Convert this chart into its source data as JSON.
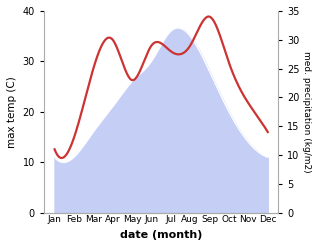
{
  "months": [
    "Jan",
    "Feb",
    "Mar",
    "Apr",
    "May",
    "Jun",
    "Jul",
    "Aug",
    "Sep",
    "Oct",
    "Nov",
    "Dec"
  ],
  "max_temp": [
    11,
    11,
    16,
    21,
    26,
    30,
    36,
    35,
    28,
    20,
    14,
    11
  ],
  "precipitation": [
    11,
    13,
    25,
    30,
    23,
    29,
    28,
    29,
    34,
    26,
    19,
    14
  ],
  "temp_ylim": [
    0,
    40
  ],
  "precip_ylim": [
    0,
    35
  ],
  "temp_fill_color": "#c5cef5",
  "temp_fill_alpha": 1.0,
  "precip_color": "#cc3333",
  "precip_linewidth": 1.6,
  "ylabel_left": "max temp (C)",
  "ylabel_right": "med. precipitation (kg/m2)",
  "xlabel": "date (month)",
  "background_color": "white",
  "yticks_left": [
    0,
    10,
    20,
    30,
    40
  ],
  "yticks_right": [
    0,
    5,
    10,
    15,
    20,
    25,
    30,
    35
  ],
  "spine_color": "#aaaaaa",
  "tick_color": "#555555"
}
